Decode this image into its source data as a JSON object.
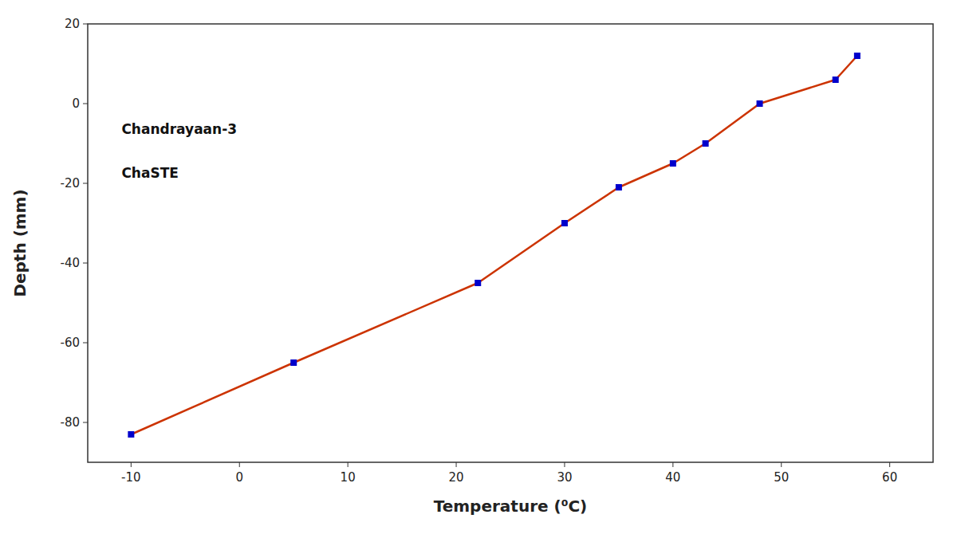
{
  "chart_data": {
    "type": "line",
    "xlabel": "Temperature (⁰C)",
    "ylabel": "Depth (mm)",
    "annotations": [
      "Chandrayaan-3",
      "ChaSTE"
    ],
    "x": [
      -10,
      5,
      22,
      30,
      35,
      40,
      43,
      48,
      55,
      57
    ],
    "values": [
      -83,
      -65,
      -45,
      -30,
      -21,
      -15,
      -10,
      0,
      6,
      12
    ],
    "color": "#CC3300",
    "colors": [
      "#0000CC",
      "#0000CC",
      "#0000CC",
      "#0000CC",
      "#0000CC",
      "#0000CC",
      "#0000CC",
      "#0000CC",
      "#0000CC",
      "#0000CC"
    ],
    "marker": "square",
    "xlim": [
      -14,
      64
    ],
    "ylim": [
      -90,
      20
    ],
    "xticks": [
      -10,
      0,
      10,
      20,
      30,
      40,
      50,
      60
    ],
    "yticks": [
      20,
      0,
      -20,
      -40,
      -60,
      -80
    ],
    "grid": false
  }
}
